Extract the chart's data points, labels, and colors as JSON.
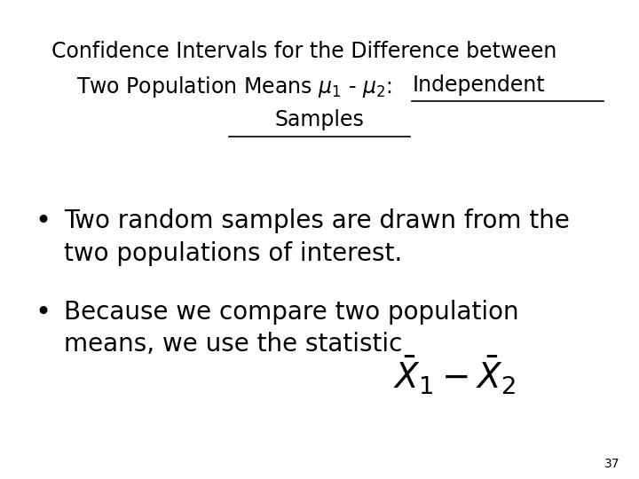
{
  "bg_color": "#ffffff",
  "title_line1": "Confidence Intervals for the Difference between",
  "title_line2_prefix": "Two Population Means ",
  "title_line2_underline": "Independent",
  "title_line3_underline": "Samples",
  "bullet1": "Two random samples are drawn from the\ntwo populations of interest.",
  "bullet2_pre": "Because we compare two population\nmeans, we use the statistic",
  "page_number": "37",
  "title_fontsize": 17,
  "body_fontsize": 20,
  "page_fontsize": 10
}
